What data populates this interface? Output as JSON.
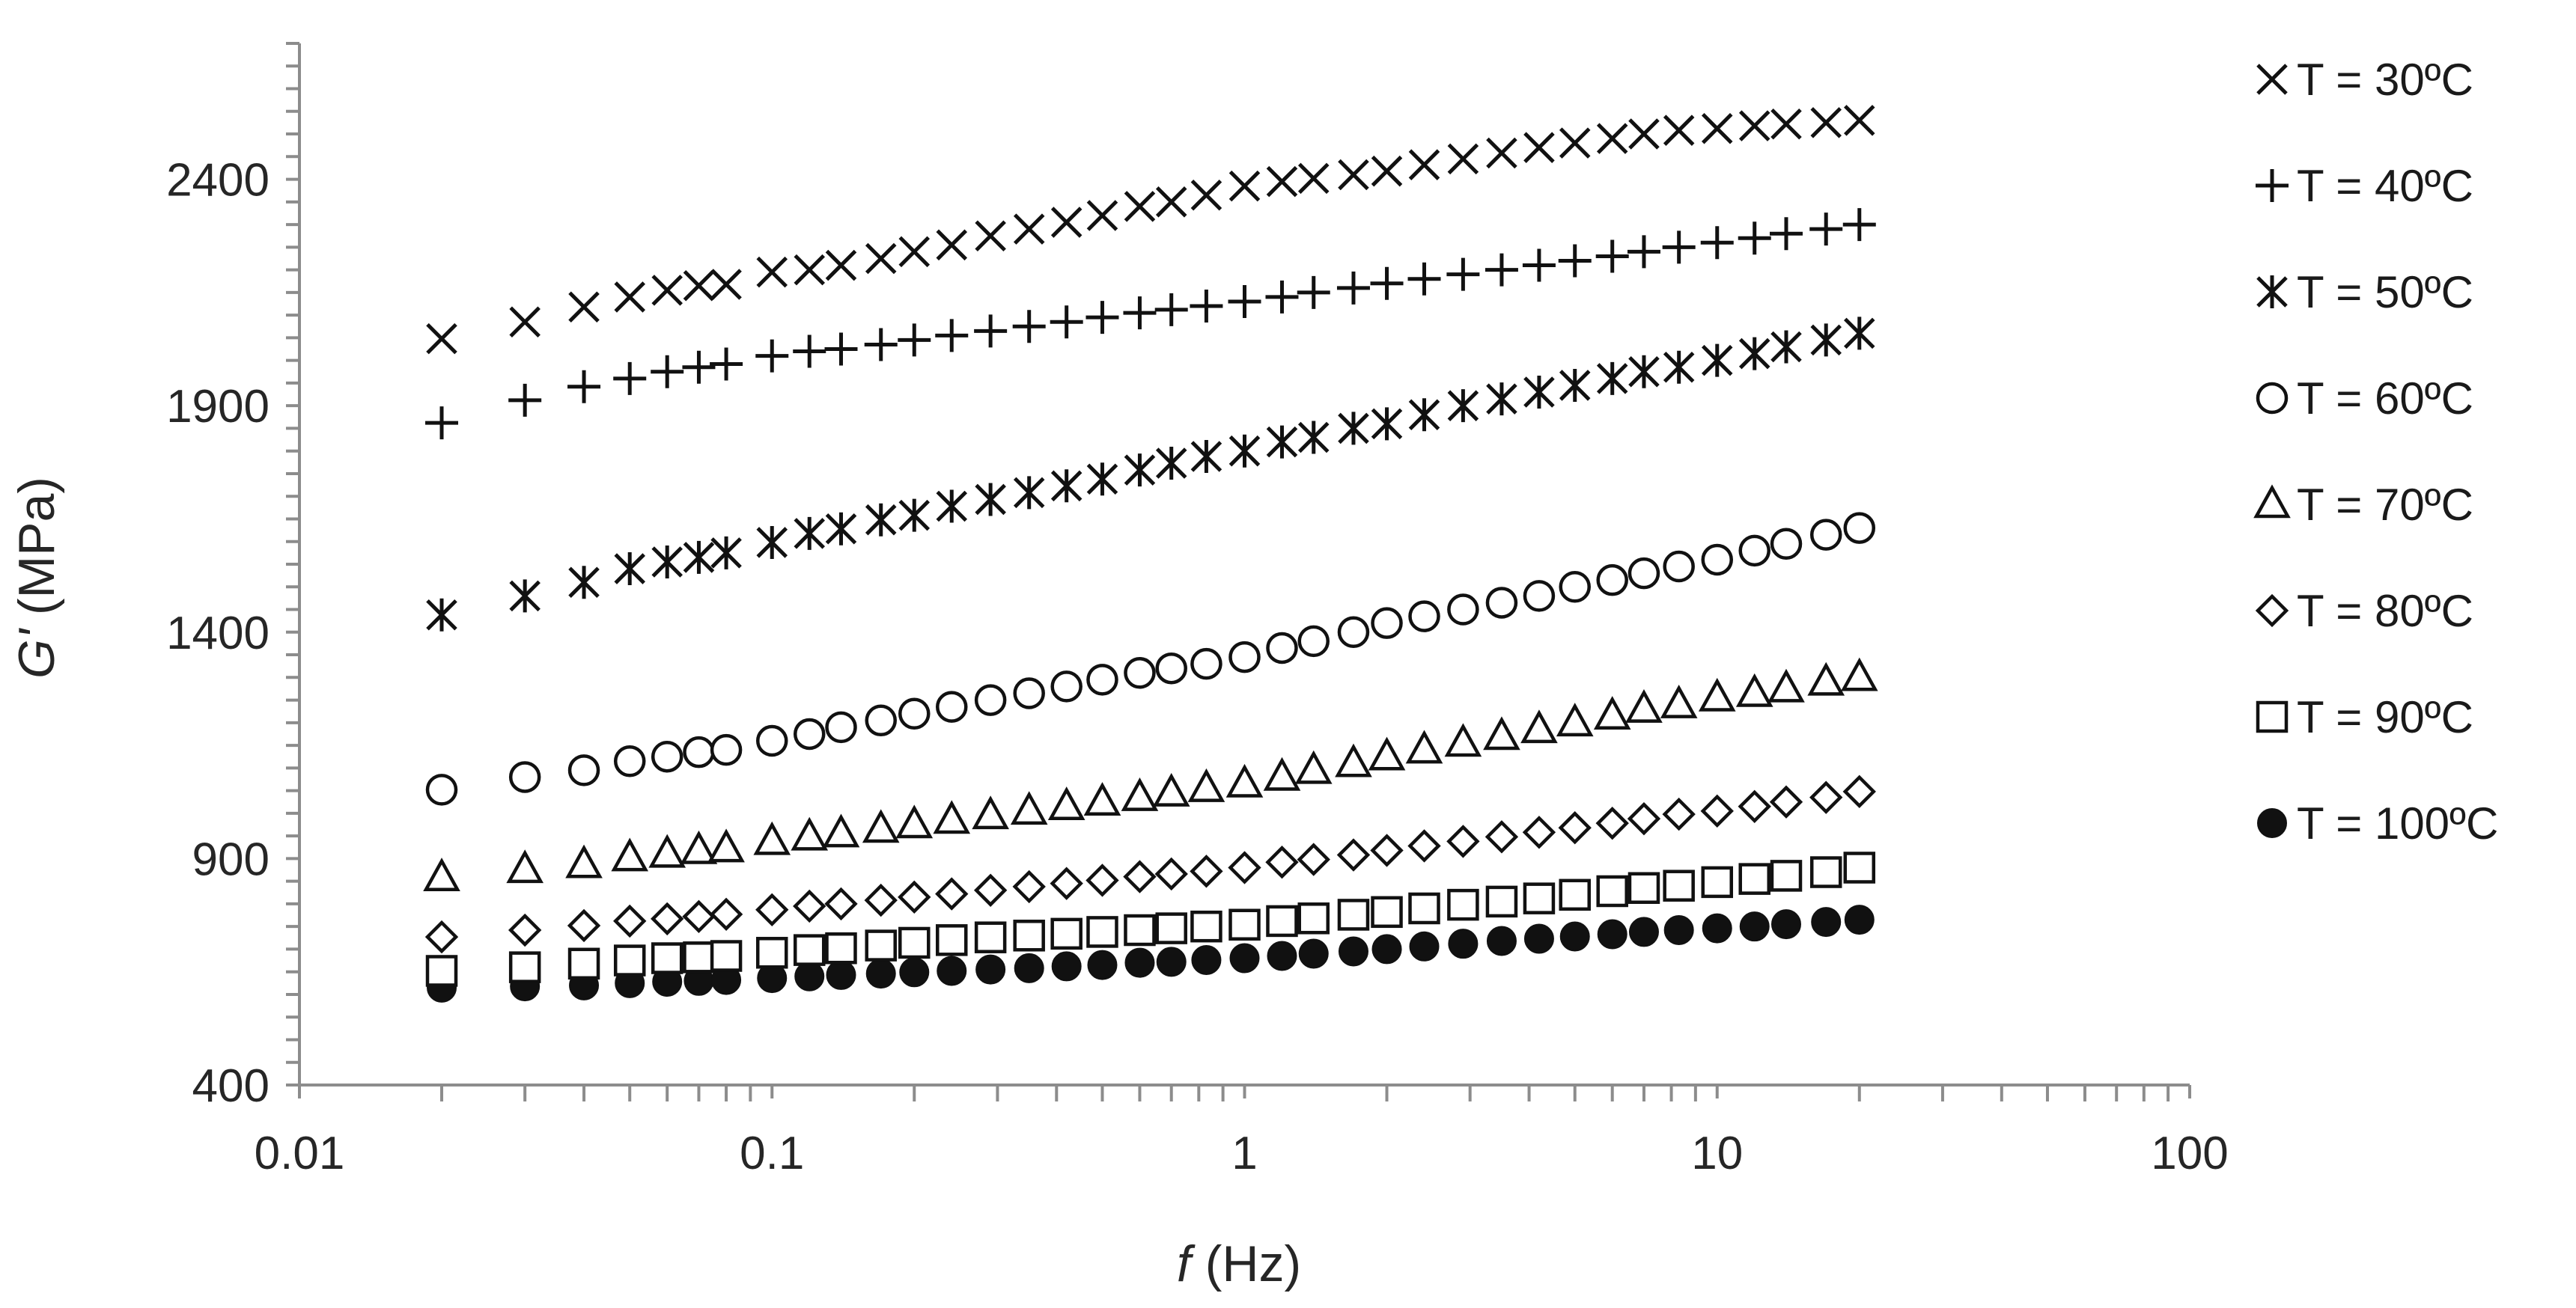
{
  "chart_data": {
    "type": "scatter",
    "title": "",
    "xlabel_italic": "f",
    "xlabel_rest": " (Hz)",
    "ylabel_italic": "G'",
    "ylabel_rest": " (MPa)",
    "x_scale": "log",
    "xlim": [
      0.01,
      100
    ],
    "ylim": [
      400,
      2700
    ],
    "x_ticks": [
      {
        "value": 0.01,
        "label": "0.01"
      },
      {
        "value": 0.1,
        "label": "0.1"
      },
      {
        "value": 1,
        "label": "1"
      },
      {
        "value": 10,
        "label": "10"
      },
      {
        "value": 100,
        "label": "100"
      }
    ],
    "y_ticks": [
      {
        "value": 400,
        "label": "400"
      },
      {
        "value": 900,
        "label": "900"
      },
      {
        "value": 1400,
        "label": "1400"
      },
      {
        "value": 1900,
        "label": "1900"
      },
      {
        "value": 2400,
        "label": "2400"
      }
    ],
    "grid": false,
    "legend_position": "right",
    "x": [
      0.02,
      0.03,
      0.04,
      0.05,
      0.06,
      0.07,
      0.08,
      0.1,
      0.12,
      0.14,
      0.17,
      0.2,
      0.24,
      0.29,
      0.35,
      0.42,
      0.5,
      0.6,
      0.7,
      0.83,
      1.0,
      1.2,
      1.4,
      1.7,
      2.0,
      2.4,
      2.9,
      3.5,
      4.2,
      5.0,
      6.0,
      7.0,
      8.3,
      10,
      12,
      14,
      17,
      20
    ],
    "series": [
      {
        "name": "T = 30ºC",
        "marker": "x",
        "values": [
          2048,
          2085,
          2118,
          2140,
          2155,
          2165,
          2168,
          2195,
          2200,
          2210,
          2225,
          2240,
          2255,
          2275,
          2290,
          2305,
          2320,
          2340,
          2350,
          2365,
          2385,
          2395,
          2402,
          2410,
          2418,
          2432,
          2445,
          2458,
          2470,
          2480,
          2490,
          2500,
          2508,
          2512,
          2518,
          2522,
          2525,
          2530
        ]
      },
      {
        "name": "T = 40ºC",
        "marker": "plus",
        "values": [
          1862,
          1912,
          1942,
          1960,
          1975,
          1985,
          1992,
          2010,
          2020,
          2025,
          2035,
          2045,
          2055,
          2065,
          2075,
          2085,
          2095,
          2105,
          2112,
          2120,
          2130,
          2140,
          2150,
          2160,
          2170,
          2180,
          2190,
          2200,
          2210,
          2220,
          2230,
          2240,
          2250,
          2260,
          2270,
          2280,
          2290,
          2300
        ]
      },
      {
        "name": "T = 50ºC",
        "marker": "asterisk",
        "values": [
          1438,
          1480,
          1510,
          1540,
          1555,
          1565,
          1575,
          1598,
          1618,
          1628,
          1648,
          1658,
          1678,
          1693,
          1708,
          1723,
          1738,
          1758,
          1773,
          1788,
          1800,
          1820,
          1830,
          1850,
          1860,
          1880,
          1900,
          1915,
          1930,
          1945,
          1960,
          1975,
          1985,
          2000,
          2015,
          2030,
          2045,
          2060
        ]
      },
      {
        "name": "T = 60ºC",
        "marker": "circle",
        "values": [
          1052,
          1080,
          1095,
          1115,
          1125,
          1135,
          1140,
          1160,
          1175,
          1190,
          1205,
          1220,
          1235,
          1250,
          1265,
          1280,
          1295,
          1310,
          1320,
          1330,
          1345,
          1365,
          1380,
          1400,
          1420,
          1435,
          1450,
          1465,
          1480,
          1500,
          1515,
          1530,
          1545,
          1560,
          1580,
          1595,
          1615,
          1630
        ]
      },
      {
        "name": "T = 70ºC",
        "marker": "triangle",
        "values": [
          858,
          876,
          887,
          902,
          910,
          918,
          922,
          938,
          948,
          955,
          965,
          975,
          985,
          995,
          1005,
          1015,
          1025,
          1035,
          1045,
          1055,
          1065,
          1080,
          1095,
          1110,
          1125,
          1140,
          1155,
          1170,
          1185,
          1200,
          1215,
          1230,
          1240,
          1255,
          1265,
          1275,
          1290,
          1300
        ]
      },
      {
        "name": "T = 80ºC",
        "marker": "diamond",
        "values": [
          727,
          742,
          752,
          762,
          767,
          772,
          777,
          787,
          795,
          800,
          808,
          815,
          822,
          830,
          838,
          845,
          852,
          860,
          866,
          872,
          880,
          892,
          898,
          908,
          918,
          928,
          938,
          948,
          958,
          968,
          978,
          988,
          998,
          1005,
          1015,
          1025,
          1035,
          1048
        ]
      },
      {
        "name": "T = 90ºC",
        "marker": "square",
        "values": [
          652,
          660,
          668,
          675,
          680,
          682,
          685,
          692,
          698,
          702,
          708,
          714,
          720,
          726,
          730,
          734,
          738,
          742,
          746,
          750,
          754,
          762,
          768,
          776,
          782,
          790,
          798,
          805,
          812,
          820,
          828,
          835,
          840,
          848,
          855,
          862,
          870,
          880
        ]
      },
      {
        "name": "T = 100ºC",
        "marker": "filled-circle",
        "values": [
          615,
          618,
          620,
          625,
          628,
          630,
          632,
          636,
          640,
          643,
          646,
          649,
          652,
          655,
          658,
          662,
          665,
          670,
          672,
          676,
          680,
          685,
          690,
          695,
          700,
          706,
          712,
          718,
          723,
          728,
          733,
          738,
          742,
          746,
          750,
          755,
          760,
          765
        ]
      }
    ]
  }
}
